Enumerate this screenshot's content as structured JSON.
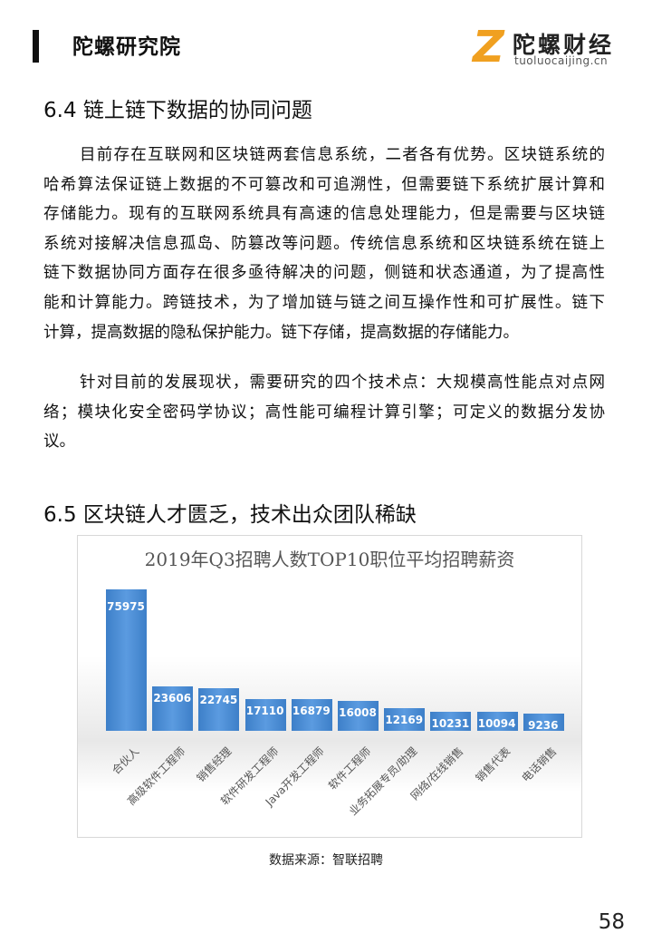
{
  "header": {
    "brand": "陀螺研究院",
    "logo_cn": "陀螺财经",
    "logo_en": "tuoluocaijing.cn",
    "logo_mark": "Z"
  },
  "section1": {
    "title": "6.4 链上链下数据的协同问题",
    "paragraphs": [
      [
        "目前存在互联网和区块链两套信息系统，二者各有优势。区块链系统的",
        "哈希算法保证链上数据的不可篡改和可追溯性，但需要链下系统扩展计算和",
        "存储能力。现有的互联网系统具有高速的信息处理能力，但是需要与区块链",
        "系统对接解决信息孤岛、防篡改等问题。传统信息系统和区块链系统在链上",
        "链下数据协同方面存在很多亟待解决的问题，侧链和状态通道，为了提高性",
        "能和计算能力。跨链技术，为了增加链与链之间互操作性和可扩展性。链下",
        "计算，提高数据的隐私保护能力。链下存储，提高数据的存储能力。"
      ],
      [
        "针对目前的发展现状，需要研究的四个技术点：大规模高性能点对点网",
        "络；模块化安全密码学协议；高性能可编程计算引擎；可定义的数据分发协",
        "议。"
      ]
    ]
  },
  "section2": {
    "title": "6.5 区块链人才匮乏，技术出众团队稀缺"
  },
  "chart_data": {
    "type": "bar",
    "title": "2019年Q3招聘人数TOP10职位平均招聘薪资",
    "categories": [
      "合伙人",
      "高级软件工程师",
      "销售经理",
      "软件研发工程师",
      "Java开发工程师",
      "软件工程师",
      "业务拓展专员/助理",
      "网络/在线销售",
      "销售代表",
      "电话销售"
    ],
    "values": [
      75975,
      23606,
      22745,
      17110,
      16879,
      16008,
      12169,
      10231,
      10094,
      9236
    ],
    "value_labels": [
      "75975",
      "23606",
      "22745",
      "17110",
      "16879",
      "16008",
      "12169",
      "10231",
      "10094",
      "9236"
    ],
    "ylim": [
      0,
      80000
    ],
    "grid": false,
    "bar_color": "#4a8ad4"
  },
  "caption": "数据来源：智联招聘",
  "page_number": "58"
}
